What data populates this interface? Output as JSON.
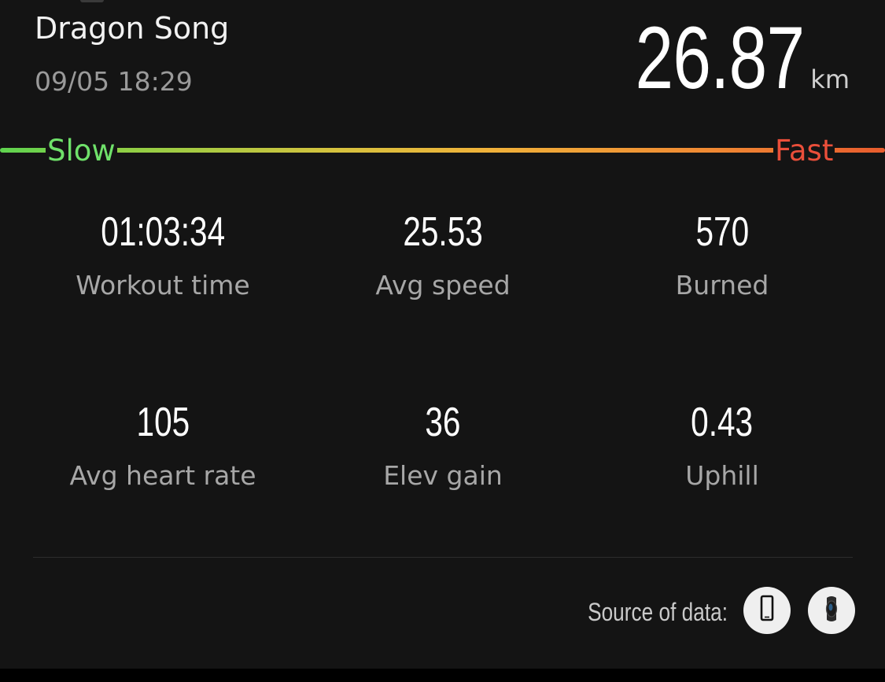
{
  "workout": {
    "name": "Dragon Song",
    "datetime": "09/05 18:29",
    "distance": "26.87",
    "distance_unit": "km"
  },
  "speed_scale": {
    "slow_label": "Slow",
    "fast_label": "Fast",
    "colors": [
      "#5fd34f",
      "#d6c23e",
      "#f0b23a",
      "#e85c2e"
    ]
  },
  "stats": [
    {
      "value": "01:03:34",
      "label": "Workout time"
    },
    {
      "value": "25.53",
      "label": "Avg speed"
    },
    {
      "value": "570",
      "label": "Burned"
    },
    {
      "value": "105",
      "label": "Avg heart rate"
    },
    {
      "value": "36",
      "label": "Elev gain"
    },
    {
      "value": "0.43",
      "label": "Uphill"
    }
  ],
  "source": {
    "label": "Source of data:",
    "icons": [
      "phone-icon",
      "smart-band-icon"
    ]
  }
}
